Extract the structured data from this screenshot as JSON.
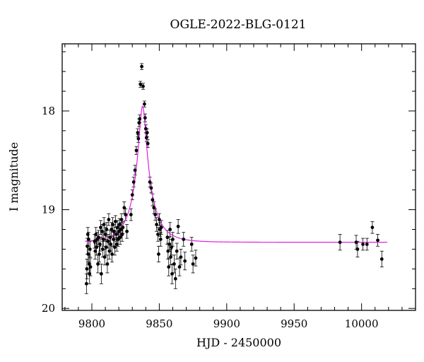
{
  "chart_data": {
    "type": "scatter",
    "title": "OGLE-2022-BLG-0121",
    "xlabel": "HJD - 2450000",
    "ylabel": "I magnitude",
    "xlim": [
      9778,
      10040
    ],
    "ylim": [
      20.02,
      17.32
    ],
    "y_inverted": true,
    "x_ticks": [
      9800,
      9850,
      9900,
      9950,
      10000
    ],
    "y_ticks": [
      18,
      19,
      20
    ],
    "grid": false,
    "colors": {
      "points": "#000000",
      "model": "#e020e0",
      "frame": "#000000"
    },
    "series": [
      {
        "kind": "points_with_errorbars",
        "points": [
          [
            9796.0,
            19.75,
            0.1
          ],
          [
            9796.3,
            19.6,
            0.1
          ],
          [
            9796.6,
            19.37,
            0.08
          ],
          [
            9797.0,
            19.25,
            0.07
          ],
          [
            9797.3,
            19.45,
            0.08
          ],
          [
            9797.6,
            19.3,
            0.07
          ],
          [
            9798.0,
            19.55,
            0.09
          ],
          [
            9798.3,
            19.65,
            0.1
          ],
          [
            9798.6,
            19.4,
            0.08
          ],
          [
            9799.0,
            19.58,
            0.09
          ],
          [
            9802.0,
            19.32,
            0.07
          ],
          [
            9802.5,
            19.42,
            0.08
          ],
          [
            9803.0,
            19.25,
            0.07
          ],
          [
            9803.5,
            19.38,
            0.08
          ],
          [
            9804.0,
            19.3,
            0.07
          ],
          [
            9804.5,
            19.55,
            0.09
          ],
          [
            9805.0,
            19.28,
            0.07
          ],
          [
            9805.5,
            19.45,
            0.08
          ],
          [
            9806.0,
            19.35,
            0.07
          ],
          [
            9806.5,
            19.18,
            0.07
          ],
          [
            9807.0,
            19.65,
            0.1
          ],
          [
            9807.5,
            19.22,
            0.07
          ],
          [
            9808.0,
            19.4,
            0.08
          ],
          [
            9808.5,
            19.3,
            0.07
          ],
          [
            9809.0,
            19.15,
            0.07
          ],
          [
            9809.5,
            19.48,
            0.08
          ],
          [
            9810.0,
            19.25,
            0.07
          ],
          [
            9810.5,
            19.38,
            0.08
          ],
          [
            9811.0,
            19.2,
            0.07
          ],
          [
            9811.5,
            19.55,
            0.09
          ],
          [
            9812.0,
            19.32,
            0.07
          ],
          [
            9812.5,
            19.1,
            0.06
          ],
          [
            9813.0,
            19.42,
            0.08
          ],
          [
            9813.5,
            19.28,
            0.07
          ],
          [
            9814.0,
            19.35,
            0.07
          ],
          [
            9814.5,
            19.2,
            0.07
          ],
          [
            9815.0,
            19.45,
            0.08
          ],
          [
            9815.5,
            19.15,
            0.07
          ],
          [
            9816.0,
            19.3,
            0.07
          ],
          [
            9816.5,
            19.22,
            0.07
          ],
          [
            9817.0,
            19.38,
            0.08
          ],
          [
            9817.5,
            19.12,
            0.06
          ],
          [
            9818.0,
            19.25,
            0.07
          ],
          [
            9818.5,
            19.35,
            0.07
          ],
          [
            9819.0,
            19.18,
            0.07
          ],
          [
            9819.5,
            19.3,
            0.07
          ],
          [
            9820.0,
            19.22,
            0.07
          ],
          [
            9820.5,
            19.15,
            0.06
          ],
          [
            9821.0,
            19.28,
            0.07
          ],
          [
            9821.5,
            19.2,
            0.07
          ],
          [
            9822.0,
            19.1,
            0.06
          ],
          [
            9822.5,
            19.25,
            0.07
          ],
          [
            9823.0,
            19.18,
            0.06
          ],
          [
            9824.0,
            18.98,
            0.06
          ],
          [
            9825.0,
            19.05,
            0.06
          ],
          [
            9826.0,
            19.22,
            0.07
          ],
          [
            9829.0,
            19.05,
            0.06
          ],
          [
            9830.0,
            18.85,
            0.05
          ],
          [
            9831.0,
            18.72,
            0.05
          ],
          [
            9832.0,
            18.6,
            0.05
          ],
          [
            9833.0,
            18.4,
            0.04
          ],
          [
            9834.0,
            18.22,
            0.04
          ],
          [
            9834.5,
            18.28,
            0.04
          ],
          [
            9835.0,
            18.12,
            0.04
          ],
          [
            9835.5,
            18.08,
            0.04
          ],
          [
            9836.0,
            17.73,
            0.03
          ],
          [
            9837.0,
            17.55,
            0.03
          ],
          [
            9838.0,
            17.75,
            0.03
          ],
          [
            9839.0,
            17.93,
            0.03
          ],
          [
            9839.5,
            18.07,
            0.04
          ],
          [
            9840.0,
            18.18,
            0.04
          ],
          [
            9840.5,
            18.27,
            0.04
          ],
          [
            9841.0,
            18.22,
            0.04
          ],
          [
            9841.5,
            18.33,
            0.04
          ],
          [
            9843.0,
            18.72,
            0.05
          ],
          [
            9844.0,
            18.78,
            0.05
          ],
          [
            9845.0,
            18.9,
            0.06
          ],
          [
            9846.0,
            18.98,
            0.06
          ],
          [
            9847.0,
            19.05,
            0.06
          ],
          [
            9848.0,
            19.15,
            0.07
          ],
          [
            9849.0,
            19.25,
            0.07
          ],
          [
            9849.5,
            19.45,
            0.08
          ],
          [
            9850.0,
            19.1,
            0.06
          ],
          [
            9850.5,
            19.2,
            0.07
          ],
          [
            9851.0,
            19.3,
            0.07
          ],
          [
            9851.5,
            19.18,
            0.07
          ],
          [
            9856.0,
            19.28,
            0.07
          ],
          [
            9856.5,
            19.42,
            0.08
          ],
          [
            9857.0,
            19.58,
            0.09
          ],
          [
            9857.5,
            19.35,
            0.07
          ],
          [
            9858.0,
            19.2,
            0.07
          ],
          [
            9858.5,
            19.48,
            0.08
          ],
          [
            9859.0,
            19.38,
            0.08
          ],
          [
            9859.5,
            19.65,
            0.1
          ],
          [
            9860.0,
            19.3,
            0.07
          ],
          [
            9861.0,
            19.55,
            0.09
          ],
          [
            9862.0,
            19.7,
            0.1
          ],
          [
            9863.0,
            19.42,
            0.08
          ],
          [
            9864.0,
            19.17,
            0.07
          ],
          [
            9865.0,
            19.58,
            0.09
          ],
          [
            9866.0,
            19.48,
            0.08
          ],
          [
            9868.0,
            19.3,
            0.07
          ],
          [
            9869.0,
            19.52,
            0.09
          ],
          [
            9874.0,
            19.35,
            0.07
          ],
          [
            9875.0,
            19.55,
            0.09
          ],
          [
            9877.0,
            19.49,
            0.08
          ],
          [
            9984.0,
            19.33,
            0.08
          ],
          [
            9996.0,
            19.33,
            0.07
          ],
          [
            9997.0,
            19.4,
            0.08
          ],
          [
            10001.0,
            19.35,
            0.06
          ],
          [
            10004.0,
            19.35,
            0.06
          ],
          [
            10008.0,
            19.18,
            0.06
          ],
          [
            10012.0,
            19.31,
            0.06
          ],
          [
            10015.0,
            19.5,
            0.08
          ]
        ]
      },
      {
        "kind": "model_curve",
        "t0": 9837.6,
        "u0": 0.165,
        "tE": 15.0,
        "base_mag": 19.33,
        "blend_frac": 0.5,
        "x_range": [
          9795,
          10019
        ]
      }
    ]
  }
}
